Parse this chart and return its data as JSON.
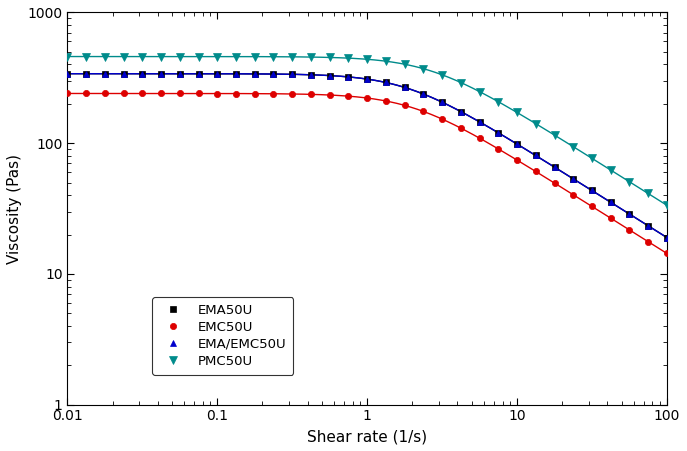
{
  "xlabel": "Shear rate (1/s)",
  "ylabel": "Viscosity (Pas)",
  "xlim": [
    0.01,
    100
  ],
  "ylim": [
    1,
    1000
  ],
  "series": [
    {
      "label": "EMA50U",
      "color": "#000000",
      "marker": "s",
      "ms": 4.5,
      "eta0": 340,
      "lam": 0.55,
      "n": 0.28
    },
    {
      "label": "EMC50U",
      "color": "#dd0000",
      "marker": "o",
      "ms": 4.5,
      "eta0": 240,
      "lam": 0.5,
      "n": 0.28
    },
    {
      "label": "EMA/EMC50U",
      "color": "#0000cc",
      "marker": "^",
      "ms": 4.5,
      "eta0": 340,
      "lam": 0.55,
      "n": 0.28
    },
    {
      "label": "PMC50U",
      "color": "#008B8B",
      "marker": "v",
      "ms": 5.5,
      "eta0": 460,
      "lam": 0.38,
      "n": 0.28
    }
  ],
  "marker_shear_rates": [
    0.01,
    0.0133,
    0.0178,
    0.0237,
    0.0316,
    0.0422,
    0.0562,
    0.075,
    0.1,
    0.133,
    0.178,
    0.237,
    0.316,
    0.422,
    0.562,
    0.75,
    1.0,
    1.33,
    1.78,
    2.37,
    3.16,
    4.22,
    5.62,
    7.5,
    10.0,
    13.3,
    17.8,
    23.7,
    31.6,
    42.2,
    56.2,
    75.0,
    100.0
  ]
}
